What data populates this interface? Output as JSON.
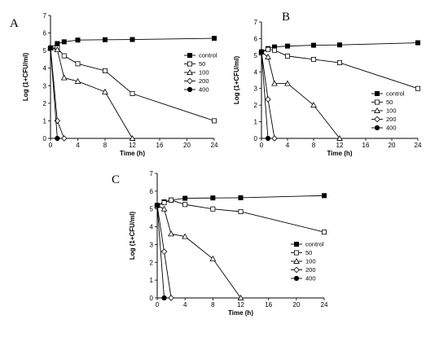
{
  "chart_data": [
    {
      "type": "line",
      "panel_label": "A",
      "xlabel": "Time (h)",
      "ylabel": "Log (1+CFU/ml)",
      "xlim": [
        0,
        24
      ],
      "ylim": [
        0,
        7
      ],
      "xticks": [
        0,
        4,
        8,
        12,
        16,
        20,
        24
      ],
      "yticks": [
        0,
        1,
        2,
        3,
        4,
        5,
        6,
        7
      ],
      "legend_position": "right",
      "grid": false,
      "series": [
        {
          "name": "control",
          "marker": "square-filled",
          "x": [
            0,
            1,
            2,
            4,
            8,
            12,
            24
          ],
          "y": [
            5.15,
            5.4,
            5.5,
            5.6,
            5.62,
            5.63,
            5.7
          ]
        },
        {
          "name": "50",
          "marker": "square-open",
          "x": [
            0,
            1,
            2,
            4,
            8,
            12,
            24
          ],
          "y": [
            5.15,
            5.15,
            4.7,
            4.25,
            3.85,
            2.55,
            1.0
          ]
        },
        {
          "name": "100",
          "marker": "triangle-open",
          "x": [
            0,
            1,
            2,
            4,
            8,
            12
          ],
          "y": [
            5.15,
            5.05,
            3.45,
            3.25,
            2.65,
            0
          ]
        },
        {
          "name": "200",
          "marker": "diamond-open",
          "x": [
            0,
            1,
            2
          ],
          "y": [
            5.15,
            1.0,
            0
          ]
        },
        {
          "name": "400",
          "marker": "circle-filled",
          "x": [
            0,
            1
          ],
          "y": [
            5.15,
            0
          ]
        }
      ]
    },
    {
      "type": "line",
      "panel_label": "B",
      "xlabel": "Time (h)",
      "ylabel": "Log (1+CFU/ml)",
      "xlim": [
        0,
        24
      ],
      "ylim": [
        0,
        7
      ],
      "xticks": [
        0,
        4,
        8,
        12,
        16,
        20,
        24
      ],
      "yticks": [
        0,
        1,
        2,
        3,
        4,
        5,
        6,
        7
      ],
      "legend_position": "right",
      "grid": false,
      "series": [
        {
          "name": "control",
          "marker": "square-filled",
          "x": [
            0,
            1,
            2,
            4,
            8,
            12,
            24
          ],
          "y": [
            5.2,
            5.4,
            5.5,
            5.55,
            5.6,
            5.62,
            5.75
          ]
        },
        {
          "name": "50",
          "marker": "square-open",
          "x": [
            0,
            1,
            2,
            4,
            8,
            12,
            24
          ],
          "y": [
            5.2,
            5.35,
            5.3,
            4.95,
            4.75,
            4.55,
            3.0
          ]
        },
        {
          "name": "100",
          "marker": "triangle-open",
          "x": [
            0,
            1,
            2,
            4,
            8,
            12
          ],
          "y": [
            5.2,
            4.9,
            3.3,
            3.3,
            2.0,
            0
          ]
        },
        {
          "name": "200",
          "marker": "diamond-open",
          "x": [
            0,
            1,
            2
          ],
          "y": [
            5.2,
            2.35,
            0
          ]
        },
        {
          "name": "400",
          "marker": "circle-filled",
          "x": [
            0,
            1
          ],
          "y": [
            5.2,
            0
          ]
        }
      ]
    },
    {
      "type": "line",
      "panel_label": "C",
      "xlabel": "Time (h)",
      "ylabel": "Log (1+CFU/ml)",
      "xlim": [
        0,
        24
      ],
      "ylim": [
        0,
        7
      ],
      "xticks": [
        0,
        4,
        8,
        12,
        16,
        20,
        24
      ],
      "yticks": [
        0,
        1,
        2,
        3,
        4,
        5,
        6,
        7
      ],
      "legend_position": "right",
      "grid": false,
      "series": [
        {
          "name": "control",
          "marker": "square-filled",
          "x": [
            0,
            1,
            2,
            4,
            8,
            12,
            24
          ],
          "y": [
            5.2,
            5.4,
            5.5,
            5.6,
            5.62,
            5.63,
            5.75
          ]
        },
        {
          "name": "50",
          "marker": "square-open",
          "x": [
            0,
            1,
            2,
            4,
            8,
            12,
            24
          ],
          "y": [
            5.2,
            5.35,
            5.5,
            5.25,
            5.0,
            4.85,
            3.7
          ]
        },
        {
          "name": "100",
          "marker": "triangle-open",
          "x": [
            0,
            1,
            2,
            4,
            8,
            12
          ],
          "y": [
            5.2,
            5.0,
            3.6,
            3.45,
            2.2,
            0
          ]
        },
        {
          "name": "200",
          "marker": "diamond-open",
          "x": [
            0,
            1,
            2
          ],
          "y": [
            5.2,
            2.6,
            0
          ]
        },
        {
          "name": "400",
          "marker": "circle-filled",
          "x": [
            0,
            1
          ],
          "y": [
            5.2,
            0
          ]
        }
      ]
    }
  ]
}
